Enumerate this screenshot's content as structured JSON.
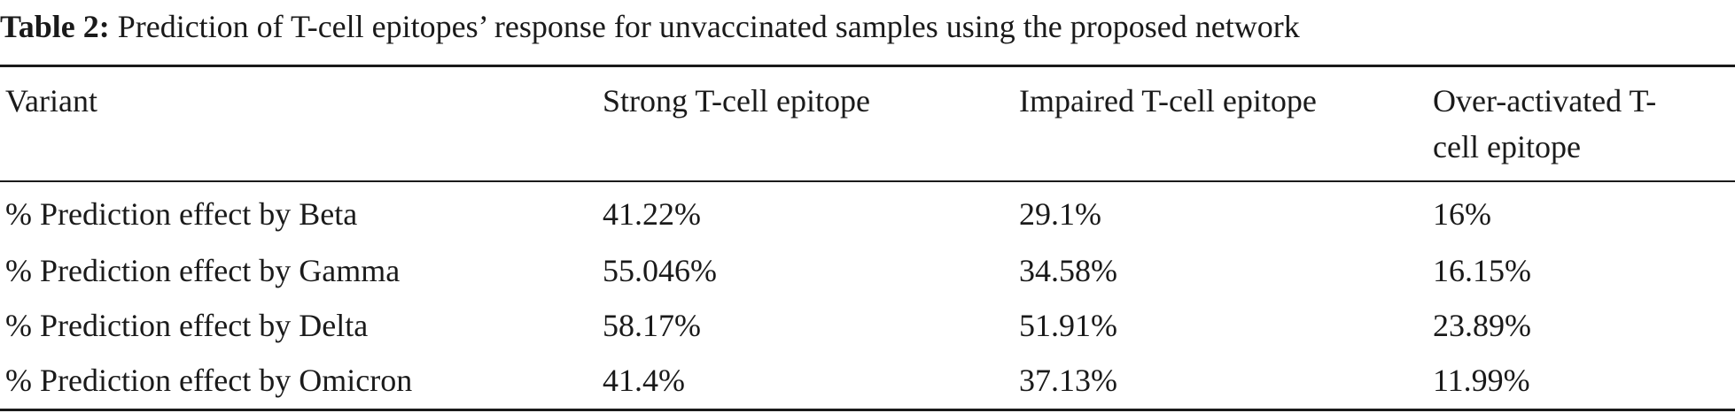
{
  "caption": {
    "label": "Table 2:",
    "text": " Prediction of T-cell epitopes’ response for unvaccinated samples using the proposed network"
  },
  "table": {
    "headers": [
      [
        "Variant"
      ],
      [
        "Strong T-cell epitope"
      ],
      [
        "Impaired T-cell epitope"
      ],
      [
        "Over-activated T-",
        "cell epitope"
      ]
    ],
    "rows": [
      [
        "% Prediction effect by Beta",
        "41.22%",
        "29.1%",
        "16%"
      ],
      [
        "% Prediction effect by Gamma",
        "55.046%",
        "34.58%",
        "16.15%"
      ],
      [
        "% Prediction effect by Delta",
        "58.17%",
        "51.91%",
        "23.89%"
      ],
      [
        "% Prediction effect by Omicron",
        "41.4%",
        "37.13%",
        "11.99%"
      ]
    ]
  }
}
